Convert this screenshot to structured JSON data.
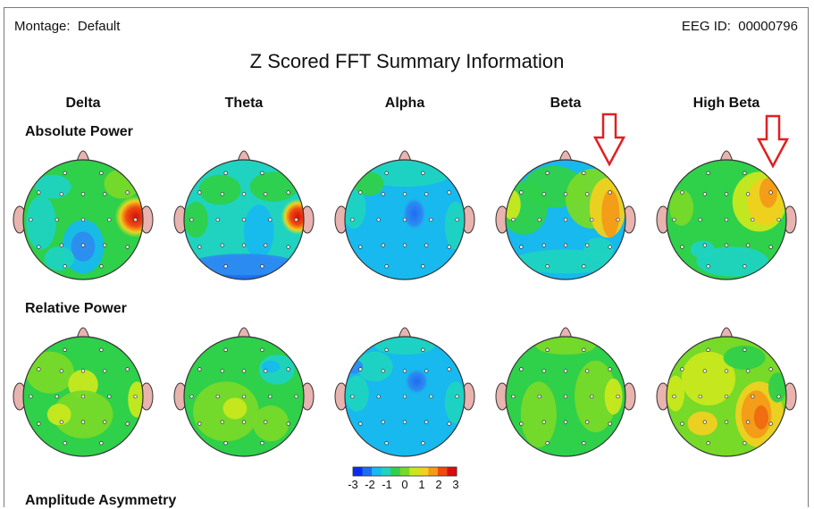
{
  "header": {
    "montage_label": "Montage:",
    "montage_value": "Default",
    "eeg_id_label": "EEG ID:",
    "eeg_id_value": "00000796"
  },
  "title": "Z Scored FFT Summary Information",
  "bands": [
    "Delta",
    "Theta",
    "Alpha",
    "Beta",
    "High Beta"
  ],
  "rows": [
    "Absolute Power",
    "Relative Power",
    "Amplitude Asymmetry"
  ],
  "color_scale": {
    "labels": [
      "-3",
      "-2",
      "-1",
      "0",
      "1",
      "2",
      "3"
    ],
    "colors": [
      "#0a2cf0",
      "#1e6cf2",
      "#17b9ee",
      "#1fd3c0",
      "#2fd04a",
      "#77d928",
      "#c8e81e",
      "#f0d020",
      "#f39a18",
      "#ef4a10",
      "#d80e0e"
    ]
  },
  "colors": {
    "head_fill": "#2fd04a",
    "ear_fill": "#e9b3b0",
    "outline": "#333333",
    "arrow": "#e02020"
  },
  "annotations": [
    {
      "type": "arrow-down",
      "target": "Absolute Power / Beta"
    },
    {
      "type": "arrow-down",
      "target": "Absolute Power / High Beta"
    }
  ]
}
